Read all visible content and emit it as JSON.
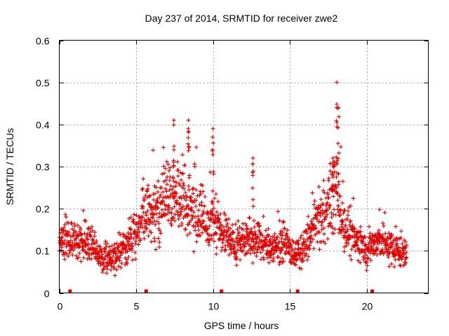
{
  "chart_data": {
    "type": "scatter",
    "title": "Day 237 of 2014, SRMTID for receiver zwe2",
    "xlabel": "GPS time / hours",
    "ylabel": "SRMTID / TECUs",
    "xlim": [
      0,
      24
    ],
    "ylim": [
      0,
      0.6
    ],
    "xticks": [
      "0",
      "5",
      "10",
      "15",
      "20"
    ],
    "yticks": [
      "0",
      "0.1",
      "0.2",
      "0.3",
      "0.4",
      "0.5",
      "0.6"
    ],
    "grid": true,
    "marker": "plus",
    "color": "#e00000",
    "series": [
      {
        "name": "SRMTID",
        "trend": [
          [
            0,
            0.12
          ],
          [
            0.5,
            0.13
          ],
          [
            1,
            0.12
          ],
          [
            1.5,
            0.13
          ],
          [
            2,
            0.12
          ],
          [
            2.5,
            0.09
          ],
          [
            3,
            0.08
          ],
          [
            3.5,
            0.08
          ],
          [
            4,
            0.1
          ],
          [
            4.5,
            0.12
          ],
          [
            5,
            0.14
          ],
          [
            5.5,
            0.18
          ],
          [
            6,
            0.18
          ],
          [
            6.5,
            0.2
          ],
          [
            7,
            0.22
          ],
          [
            7.5,
            0.24
          ],
          [
            8,
            0.22
          ],
          [
            8.5,
            0.2
          ],
          [
            9,
            0.18
          ],
          [
            9.5,
            0.17
          ],
          [
            10,
            0.17
          ],
          [
            10.5,
            0.15
          ],
          [
            11,
            0.13
          ],
          [
            11.5,
            0.12
          ],
          [
            12,
            0.12
          ],
          [
            12.5,
            0.13
          ],
          [
            13,
            0.12
          ],
          [
            13.5,
            0.11
          ],
          [
            14,
            0.11
          ],
          [
            14.5,
            0.12
          ],
          [
            15,
            0.1
          ],
          [
            15.5,
            0.09
          ],
          [
            16,
            0.11
          ],
          [
            16.5,
            0.15
          ],
          [
            17,
            0.18
          ],
          [
            17.5,
            0.2
          ],
          [
            18,
            0.24
          ],
          [
            18.5,
            0.16
          ],
          [
            19,
            0.13
          ],
          [
            19.5,
            0.12
          ],
          [
            20,
            0.1
          ],
          [
            20.5,
            0.12
          ],
          [
            21,
            0.12
          ],
          [
            21.5,
            0.11
          ],
          [
            22,
            0.1
          ],
          [
            22.6,
            0.09
          ]
        ],
        "peaks": [
          [
            7.45,
            0.41
          ],
          [
            8.4,
            0.41
          ],
          [
            10.0,
            0.39
          ],
          [
            12.6,
            0.32
          ],
          [
            17.8,
            0.31
          ],
          [
            18.05,
            0.5
          ],
          [
            18.15,
            0.44
          ]
        ]
      }
    ],
    "gap_markers_x": [
      0.7,
      5.65,
      10.55,
      15.5,
      20.35
    ]
  }
}
